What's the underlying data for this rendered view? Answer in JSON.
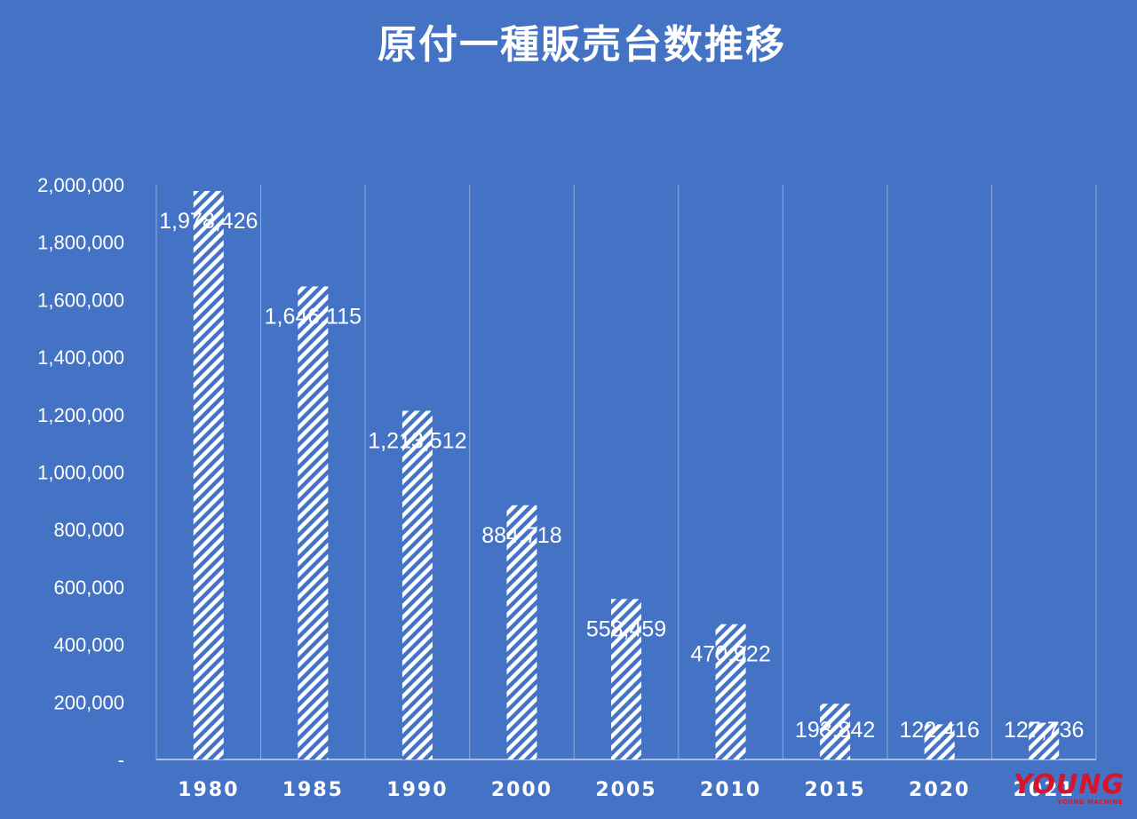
{
  "chart_data": {
    "type": "bar",
    "title": "原付一種販売台数推移",
    "categories": [
      "1980",
      "1985",
      "1990",
      "2000",
      "2005",
      "2010",
      "2015",
      "2020",
      "2021"
    ],
    "values": [
      1978426,
      1646115,
      1213512,
      884718,
      558459,
      470922,
      193842,
      122416,
      127736
    ],
    "data_labels": [
      "1,978,426",
      "1,646,115",
      "1,213,512",
      "884,718",
      "558,459",
      "470,922",
      "193,842",
      "122,416",
      "127,736"
    ],
    "yticks": [
      0,
      200000,
      400000,
      600000,
      800000,
      1000000,
      1200000,
      1400000,
      1600000,
      1800000,
      2000000
    ],
    "ytick_labels": [
      "-",
      "200,000",
      "400,000",
      "600,000",
      "800,000",
      "1,000,000",
      "1,200,000",
      "1,400,000",
      "1,600,000",
      "1,800,000",
      "2,000,000"
    ],
    "ylim": [
      0,
      2000000
    ],
    "xlabel": "",
    "ylabel": "",
    "grid": "vertical",
    "bar_fill": "white-diagonal-hatch",
    "colors": {
      "background": "#4472c4",
      "bar": "#ffffff",
      "text": "#ffffff"
    }
  },
  "watermark": {
    "main": "YOUNG",
    "sub": "YOUNG MACHINE"
  }
}
